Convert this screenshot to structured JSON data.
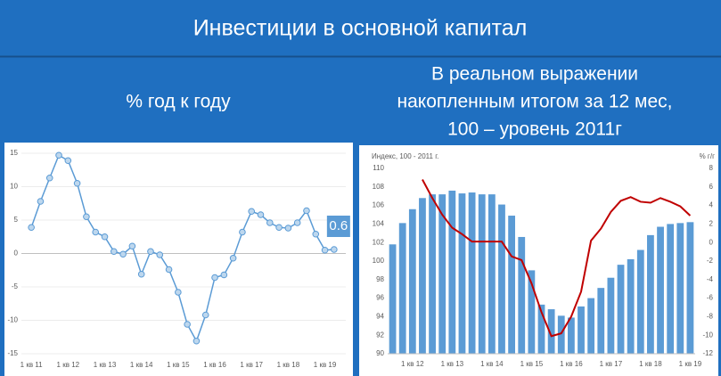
{
  "header": {
    "title": "Инвестиции в основной капитал"
  },
  "chart_data": [
    {
      "type": "line",
      "title": "% год к году",
      "categories": [
        "1 кв 11",
        null,
        null,
        null,
        "1 кв 12",
        null,
        null,
        null,
        "1 кв 13",
        null,
        null,
        null,
        "1 кв 14",
        null,
        null,
        null,
        "1 кв 15",
        null,
        null,
        null,
        "1 кв 16",
        null,
        null,
        null,
        "1 кв 17",
        null,
        null,
        null,
        "1 кв 18",
        null,
        null,
        null,
        "1 кв 19",
        null
      ],
      "series": [
        {
          "color": "#5b9bd5",
          "values": [
            3.9,
            7.8,
            11.3,
            14.7,
            13.9,
            10.5,
            5.5,
            3.2,
            2.5,
            0.3,
            -0.1,
            1.1,
            -3.1,
            0.3,
            -0.2,
            -2.4,
            -5.8,
            -10.6,
            -13.1,
            -9.2,
            -3.6,
            -3.2,
            -0.7,
            3.2,
            6.3,
            5.8,
            4.6,
            3.9,
            3.8,
            4.6,
            6.4,
            2.9,
            0.5,
            0.6
          ]
        }
      ],
      "data_labels": "last",
      "ylim": [
        -15,
        15
      ],
      "yticks": [
        -15,
        -10,
        -5,
        0,
        5,
        10,
        15
      ],
      "grid": true
    },
    {
      "type": "bar_line",
      "title_lines": [
        "В реальном выражении",
        "накопленным итогом за 12 мес,",
        "100 – уровень 2011г"
      ],
      "ylabel": "Индекс, 100 - 2011 г.",
      "y2label": "% г/г",
      "categories": [
        null,
        null,
        "1 кв 12",
        null,
        null,
        null,
        "1 кв 13",
        null,
        null,
        null,
        "1 кв 14",
        null,
        null,
        null,
        "1 кв 15",
        null,
        null,
        null,
        "1 кв 16",
        null,
        null,
        null,
        "1 кв 17",
        null,
        null,
        null,
        "1 кв 18",
        null,
        null,
        null,
        "1 кв 19"
      ],
      "series": [
        {
          "type": "bar",
          "color": "#5b9bd5",
          "values": [
            101.8,
            104.1,
            105.6,
            106.8,
            107.2,
            107.2,
            107.6,
            107.3,
            107.4,
            107.2,
            107.2,
            106.1,
            104.9,
            102.6,
            99.0,
            95.3,
            94.8,
            94.1,
            93.9,
            95.1,
            96.0,
            97.1,
            98.2,
            99.6,
            100.2,
            101.2,
            102.8,
            103.7,
            104.0,
            104.1,
            104.2
          ]
        },
        {
          "type": "line",
          "axis": "y2",
          "color": "#c00000",
          "values": [
            null,
            null,
            null,
            6.8,
            4.8,
            3.0,
            1.6,
            0.9,
            0.1,
            0.1,
            0.1,
            0.1,
            -1.5,
            -1.9,
            -4.4,
            -7.5,
            -10.1,
            -9.8,
            -8.0,
            -5.3,
            0.2,
            1.5,
            3.3,
            4.5,
            4.9,
            4.4,
            4.3,
            4.8,
            4.4,
            3.9,
            2.9
          ]
        }
      ],
      "ylim": [
        90,
        110
      ],
      "yticks": [
        90,
        92,
        94,
        96,
        98,
        100,
        102,
        104,
        106,
        108,
        110
      ],
      "y2lim": [
        -12,
        8
      ],
      "y2ticks": [
        -12,
        -10,
        -8,
        -6,
        -4,
        -2,
        0,
        2,
        4,
        6,
        8
      ],
      "grid": false
    }
  ]
}
